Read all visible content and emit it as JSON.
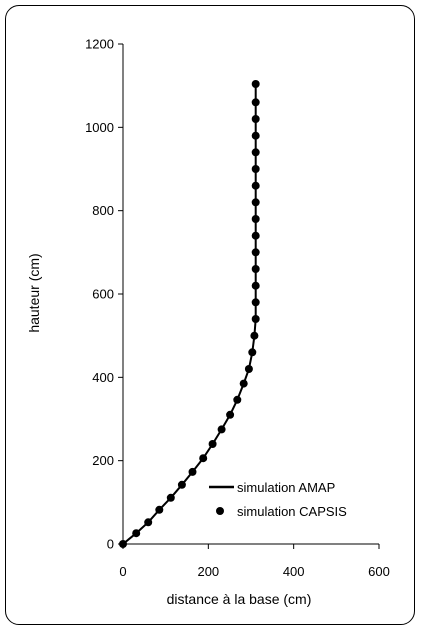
{
  "chart_data": {
    "type": "scatter",
    "xlabel": "distance à la base (cm)",
    "ylabel": "hauteur (cm)",
    "xlim": [
      0,
      600
    ],
    "ylim": [
      0,
      1200
    ],
    "xticks": [
      0,
      200,
      400,
      600
    ],
    "yticks": [
      0,
      200,
      400,
      600,
      800,
      1000,
      1200
    ],
    "grid": false,
    "legend_position": "bottom-right",
    "series": [
      {
        "name": "simulation AMAP",
        "style": "line",
        "color": "#000000",
        "x": [
          0,
          31,
          59,
          85,
          112,
          138,
          163,
          188,
          210,
          231,
          251,
          268,
          283,
          295,
          303,
          308,
          311,
          311,
          311,
          311,
          311,
          311,
          311,
          311,
          311,
          311,
          311,
          311,
          311,
          311,
          311,
          311,
          311,
          311
        ],
        "y": [
          0,
          26,
          52,
          82,
          111,
          142,
          173,
          206,
          240,
          275,
          310,
          346,
          385,
          420,
          460,
          500,
          540,
          580,
          620,
          660,
          700,
          740,
          780,
          820,
          860,
          900,
          940,
          980,
          1020,
          1060,
          1080,
          1090,
          1100,
          1104
        ]
      },
      {
        "name": "simulation CAPSIS",
        "style": "marker",
        "color": "#000000",
        "x": [
          0,
          31,
          59,
          85,
          112,
          138,
          163,
          188,
          210,
          231,
          251,
          268,
          283,
          295,
          303,
          308,
          311,
          311,
          311,
          311,
          311,
          311,
          311,
          311,
          311,
          311,
          311,
          311,
          311,
          311,
          311
        ],
        "y": [
          0,
          26,
          52,
          82,
          111,
          142,
          173,
          206,
          240,
          275,
          310,
          346,
          385,
          420,
          460,
          500,
          540,
          580,
          620,
          660,
          700,
          740,
          780,
          820,
          860,
          900,
          940,
          980,
          1020,
          1060,
          1104
        ]
      }
    ]
  }
}
